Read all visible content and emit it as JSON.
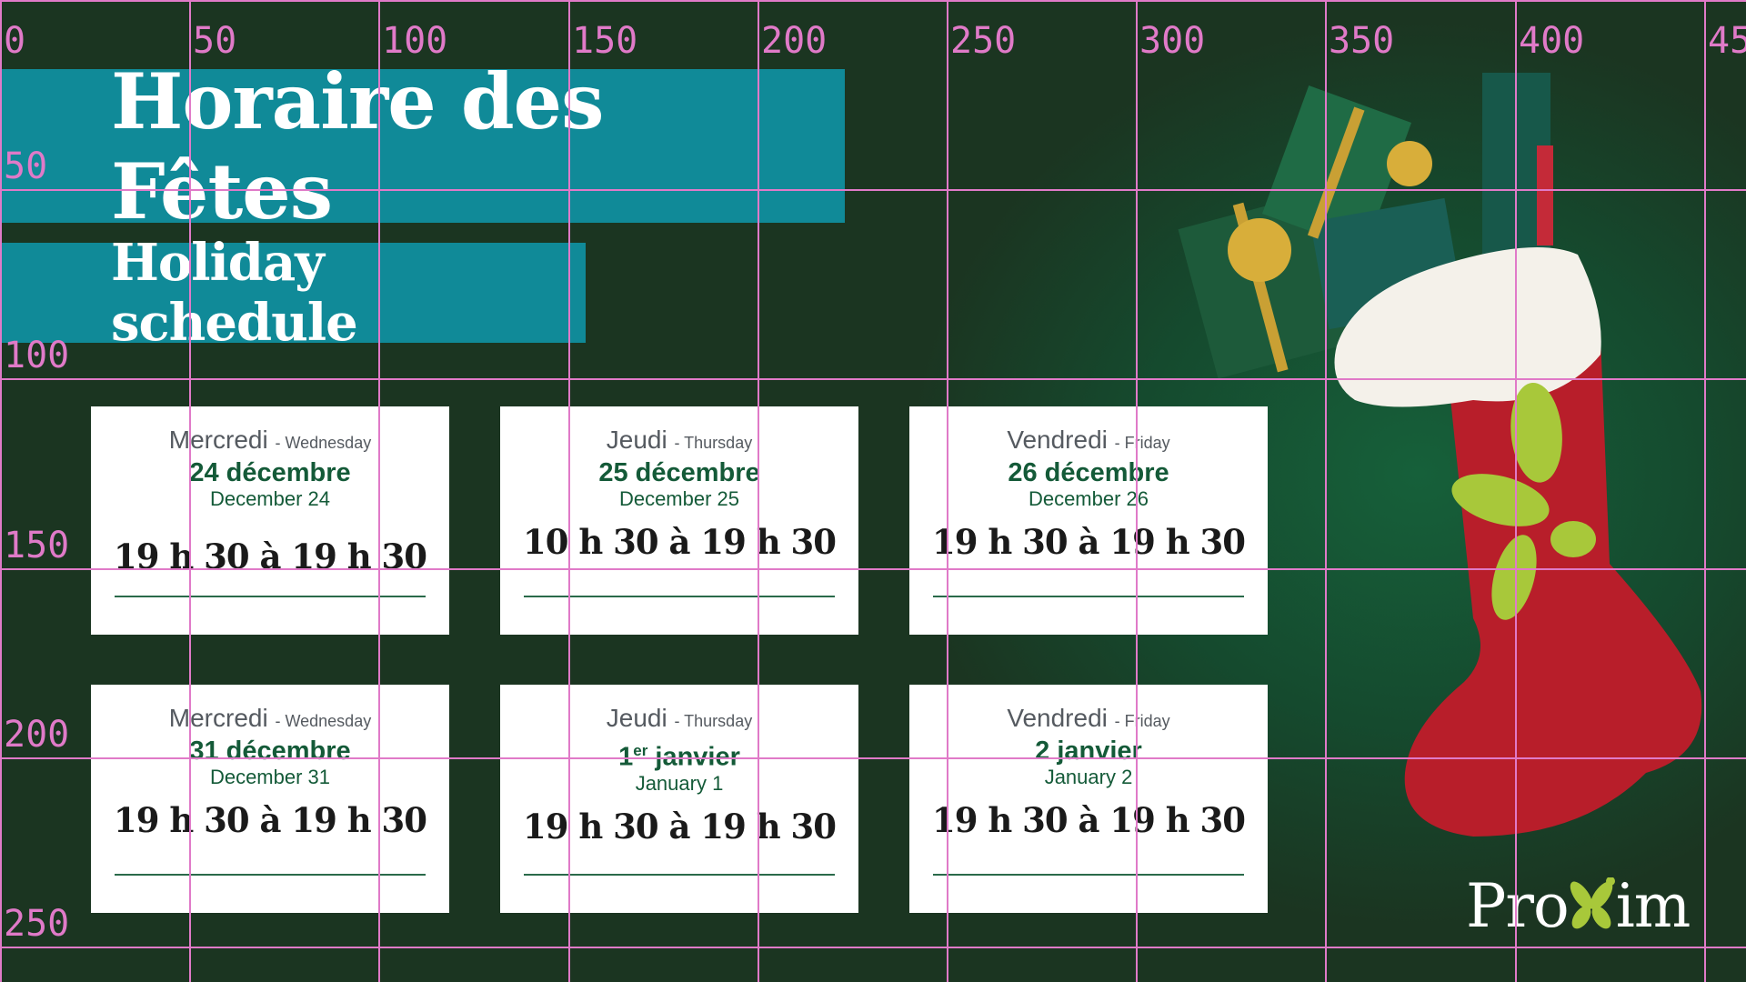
{
  "header": {
    "title": "Horaire des Fêtes",
    "subtitle": "Holiday schedule"
  },
  "cards": [
    {
      "day_fr": "Mercredi",
      "day_en": "- Wednesday",
      "date_fr": "24 décembre",
      "date_en": "December 24",
      "hours": "19 h 30 à 19 h 30"
    },
    {
      "day_fr": "Jeudi",
      "day_en": "- Thursday",
      "date_fr": "25 décembre",
      "date_en": "December 25",
      "hours": "10 h 30 à 19 h 30"
    },
    {
      "day_fr": "Vendredi",
      "day_en": "- Friday",
      "date_fr": "26 décembre",
      "date_en": "December 26",
      "hours": "19 h 30 à 19 h 30"
    },
    {
      "day_fr": "Mercredi",
      "day_en": "- Wednesday",
      "date_fr": "31 décembre",
      "date_en": "December 31",
      "hours": "19 h 30 à 19 h 30"
    },
    {
      "day_fr": "Jeudi",
      "day_en": "- Thursday",
      "date_fr_num": "1",
      "date_fr_sup": "er",
      "date_fr_month": " janvier",
      "date_en": "January 1",
      "hours": "19 h 30 à 19 h 30"
    },
    {
      "day_fr": "Vendredi",
      "day_en": "- Friday",
      "date_fr": "2 janvier",
      "date_en": "January 2",
      "hours": "19 h 30 à 19 h 30"
    }
  ],
  "logo": {
    "text_before": "Pro",
    "text_after": "im",
    "brand_green": "#a8c83a"
  },
  "grid_overlay": {
    "x_labels": [
      "0",
      "50",
      "100",
      "150",
      "200",
      "250",
      "300",
      "350",
      "400",
      "45"
    ],
    "y_labels": [
      "50",
      "100",
      "150",
      "200",
      "250"
    ],
    "color": "#e07ac8"
  }
}
